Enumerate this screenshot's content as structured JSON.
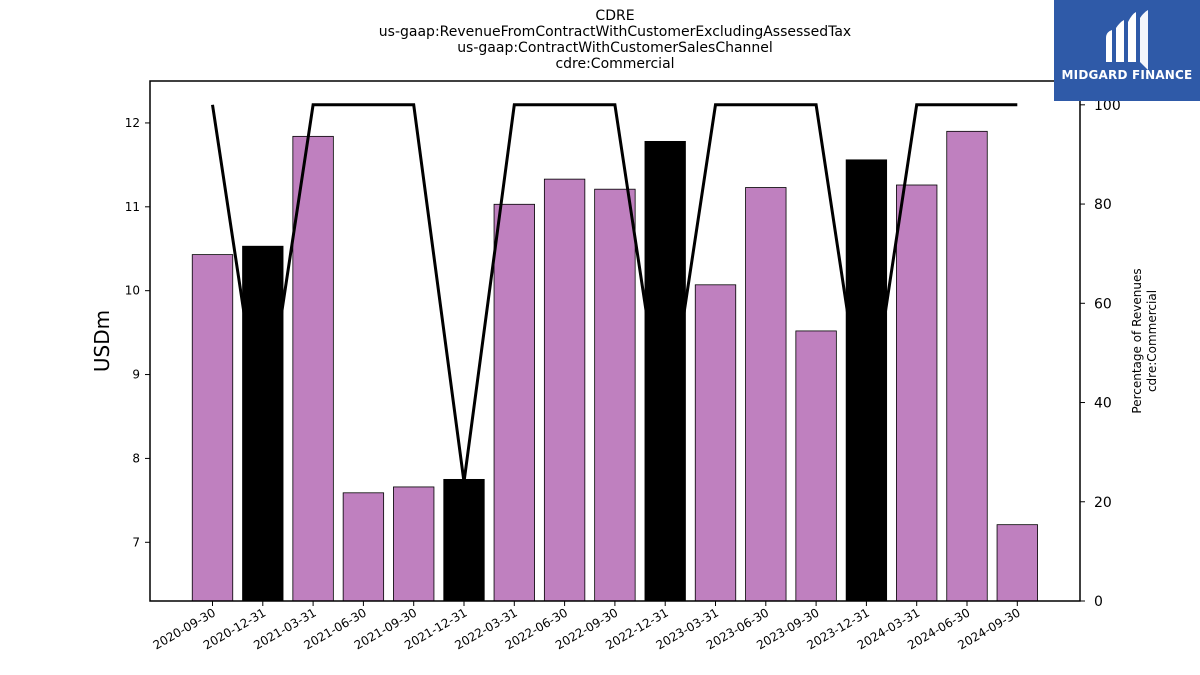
{
  "chart_data": {
    "type": "bar",
    "title": [
      "CDRE",
      "us-gaap:RevenueFromContractWithCustomerExcludingAssessedTax",
      "us-gaap:ContractWithCustomerSalesChannel",
      "cdre:Commercial"
    ],
    "ylabel": "USDm",
    "y2label": [
      "Percentage of Revenues",
      "cdre:Commercial"
    ],
    "categories": [
      "2020-09-30",
      "2020-12-31",
      "2021-03-31",
      "2021-06-30",
      "2021-09-30",
      "2021-12-31",
      "2022-03-31",
      "2022-06-30",
      "2022-09-30",
      "2022-12-31",
      "2023-03-31",
      "2023-06-30",
      "2023-09-30",
      "2023-12-31",
      "2024-03-31",
      "2024-06-30",
      "2024-09-30"
    ],
    "values": [
      10.43,
      10.53,
      11.84,
      7.59,
      7.66,
      7.75,
      11.03,
      11.33,
      11.21,
      11.78,
      10.07,
      11.23,
      9.52,
      11.56,
      11.26,
      11.9,
      7.21
    ],
    "bar_colors": [
      "#bf80bf",
      "#000000",
      "#bf80bf",
      "#bf80bf",
      "#bf80bf",
      "#000000",
      "#bf80bf",
      "#bf80bf",
      "#bf80bf",
      "#000000",
      "#bf80bf",
      "#bf80bf",
      "#bf80bf",
      "#000000",
      "#bf80bf",
      "#bf80bf",
      "#bf80bf"
    ],
    "percentage_line": [
      100,
      33,
      100,
      100,
      100,
      24,
      100,
      100,
      100,
      33,
      100,
      100,
      100,
      33,
      100,
      100,
      100
    ],
    "ylim": [
      6.3,
      12.5
    ],
    "y_ticks": [
      7,
      8,
      9,
      10,
      11,
      12
    ],
    "y2lim": [
      0,
      104.8
    ],
    "y2_ticks": [
      0,
      20,
      40,
      60,
      80,
      100
    ],
    "grid": false,
    "colors": {
      "bar": "#bf80bf",
      "bar_highlight": "#000000",
      "line": "#000000"
    }
  },
  "logo": {
    "text": "MIDGARD FINANCE",
    "color": "#2f5aa8"
  }
}
